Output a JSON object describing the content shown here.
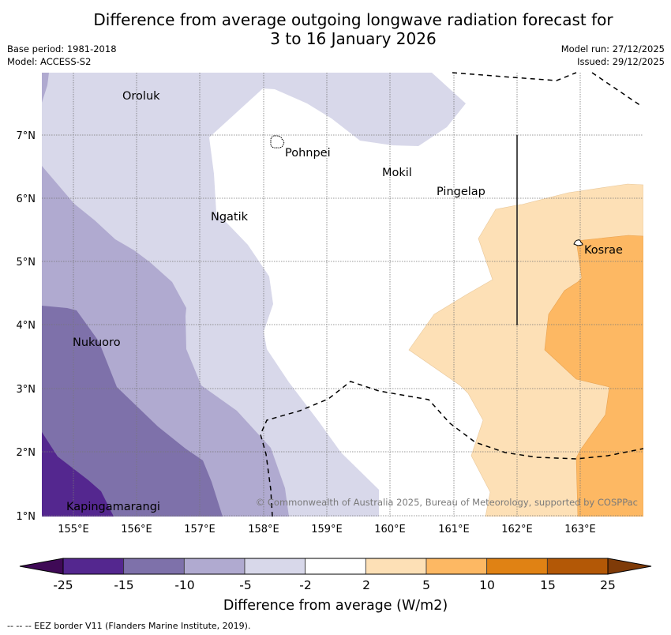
{
  "header": {
    "title_line1": "Difference from average outgoing longwave radiation forecast for",
    "title_line2": "3 to 16 January 2026",
    "base_period": "Base period: 1981-2018",
    "model": "Model: ACCESS-S2",
    "model_run": "Model run: 27/12/2025",
    "issued": "Issued: 29/12/2025"
  },
  "map": {
    "extent": {
      "lon_min": 154.5,
      "lon_max": 164.0,
      "lat_min": 1.0,
      "lat_max": 8.0
    },
    "lon_ticks": [
      "155°E",
      "156°E",
      "157°E",
      "158°E",
      "159°E",
      "160°E",
      "161°E",
      "162°E",
      "163°E"
    ],
    "lat_ticks": [
      "1°N",
      "2°N",
      "3°N",
      "4°N",
      "5°N",
      "6°N",
      "7°N"
    ],
    "places": [
      {
        "name": "Oroluk",
        "lon": 156.2,
        "lat": 7.6
      },
      {
        "name": "Pohnpei",
        "lon": 158.2,
        "lat": 6.9
      },
      {
        "name": "Mokil",
        "lon": 159.8,
        "lat": 6.7
      },
      {
        "name": "Pingelap",
        "lon": 160.7,
        "lat": 6.2
      },
      {
        "name": "Ngatik",
        "lon": 157.3,
        "lat": 5.8
      },
      {
        "name": "Kosrae",
        "lon": 163.0,
        "lat": 5.3
      },
      {
        "name": "Nukuoro",
        "lon": 155.0,
        "lat": 3.9
      },
      {
        "name": "Kapingamarangi",
        "lon": 154.8,
        "lat": 1.1
      }
    ],
    "copyright": "© Commonwealth of Australia 2025, Bureau of Meteorology, supported by COSPPac"
  },
  "colorbar": {
    "label": "Difference from average (W/m2)",
    "ticks": [
      "-25",
      "-15",
      "-10",
      "-5",
      "-2",
      "2",
      "5",
      "10",
      "15",
      "25"
    ],
    "extend_low_color": "#3f0a56",
    "extend_high_color": "#7f3b08",
    "bins": [
      {
        "range": "-25 to -15",
        "color": "#54278f"
      },
      {
        "range": "-15 to -10",
        "color": "#7e71aa"
      },
      {
        "range": "-10 to -5",
        "color": "#b0aad0"
      },
      {
        "range": "-5 to -2",
        "color": "#d8d8ea"
      },
      {
        "range": "-2 to 2",
        "color": "#ffffff"
      },
      {
        "range": "2 to 5",
        "color": "#fde0b6"
      },
      {
        "range": "5 to 10",
        "color": "#fdb863"
      },
      {
        "range": "10 to 15",
        "color": "#e08214"
      },
      {
        "range": "15 to 25",
        "color": "#b35806"
      }
    ]
  },
  "footnote": "--  --  -- EEZ border V11 (Flanders Marine Institute, 2019)."
}
